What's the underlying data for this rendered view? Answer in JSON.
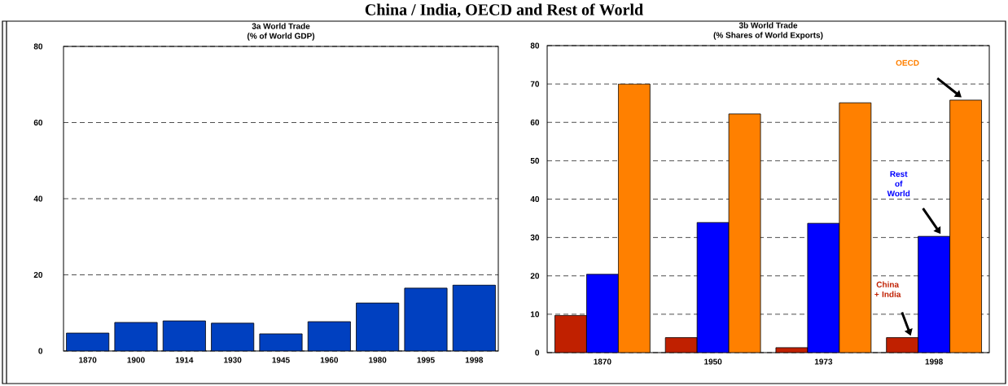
{
  "chart_data": [
    {
      "type": "bar",
      "title": "3a World Trade",
      "subtitle": "(% of World GDP)",
      "annotations": [
        "China / India, OECD and Rest of World"
      ],
      "categories": [
        "1870",
        "1900",
        "1914",
        "1930",
        "1945",
        "1960",
        "1980",
        "1995",
        "1998"
      ],
      "values": [
        4.7,
        7.5,
        7.9,
        7.3,
        4.5,
        7.7,
        12.6,
        16.5,
        17.3
      ],
      "color": "#0040c0",
      "ylim": [
        0,
        80
      ],
      "yticks": [
        0,
        20,
        40,
        60,
        80
      ],
      "grid": "y",
      "legend": false
    },
    {
      "type": "bar",
      "title": "3b World Trade",
      "subtitle": "(% Shares of World Exports)",
      "categories": [
        "1870",
        "1950",
        "1973",
        "1998"
      ],
      "series": [
        {
          "name": "China + India",
          "color": "#c02000",
          "values": [
            9.7,
            3.9,
            1.3,
            3.9
          ]
        },
        {
          "name": "Rest of World",
          "color": "#0000ff",
          "values": [
            20.4,
            33.9,
            33.7,
            30.3
          ]
        },
        {
          "name": "OECD",
          "color": "#ff8000",
          "values": [
            70,
            62.2,
            65.1,
            65.8
          ]
        }
      ],
      "ylim": [
        0,
        80
      ],
      "yticks": [
        0,
        10,
        20,
        30,
        40,
        50,
        60,
        70,
        80
      ],
      "grid": "y",
      "legend": false
    }
  ]
}
